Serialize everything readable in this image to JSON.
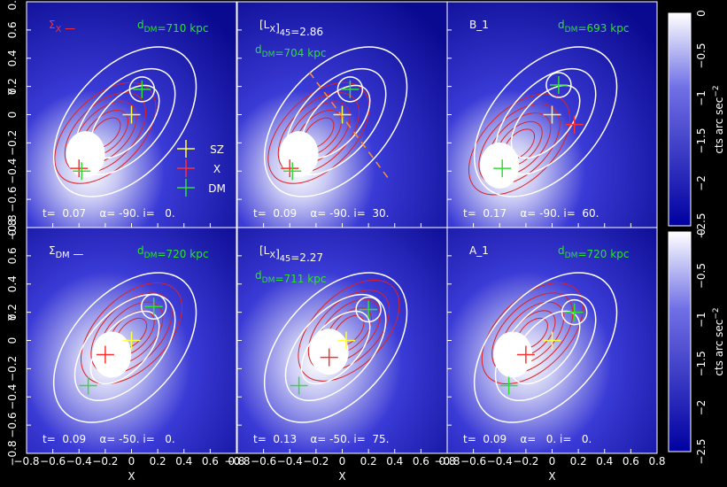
{
  "panels": [
    {
      "label": [
        {
          "text": "Σ"
        },
        {
          "sub": "X"
        },
        {
          "text": " —"
        }
      ],
      "distance": [
        {
          "text": "d"
        },
        {
          "sub": "DM"
        },
        {
          "text": "=710 kpc"
        }
      ],
      "info": "t=  0.07    α= -90. i=   0."
    },
    {
      "label": [
        {
          "text": "[L"
        },
        {
          "sub": "X"
        },
        {
          "text": "]"
        },
        {
          "sub": "45"
        },
        {
          "text": "=2.86"
        }
      ],
      "distance": [
        {
          "text": "d"
        },
        {
          "sub": "DM"
        },
        {
          "text": "=704 kpc"
        }
      ],
      "info": "t=  0.09    α= -90. i=  30."
    },
    {
      "label": [
        {
          "text": "B_1"
        }
      ],
      "distance": [
        {
          "text": "d"
        },
        {
          "sub": "DM"
        },
        {
          "text": "=693 kpc"
        }
      ],
      "info": "t=  0.17    α= -90. i=  60."
    },
    {
      "label": [
        {
          "text": "Σ"
        },
        {
          "sub": "DM"
        },
        {
          "text": " —"
        }
      ],
      "distance": [
        {
          "text": "d"
        },
        {
          "sub": "DM"
        },
        {
          "text": "=720 kpc"
        }
      ],
      "info": "t=  0.09    α= -50. i=   0."
    },
    {
      "label": [
        {
          "text": "[L"
        },
        {
          "sub": "X"
        },
        {
          "text": "]"
        },
        {
          "sub": "45"
        },
        {
          "text": "=2.27"
        }
      ],
      "distance": [
        {
          "text": "d"
        },
        {
          "sub": "DM"
        },
        {
          "text": "=711 kpc"
        }
      ],
      "info": "t=  0.13    α= -50. i=  75."
    },
    {
      "label": [
        {
          "text": "A_1"
        }
      ],
      "distance": [
        {
          "text": "d"
        },
        {
          "sub": "DM"
        },
        {
          "text": "=720 kpc"
        }
      ],
      "info": "t=  0.09    α=   0. i=   0."
    }
  ],
  "legend": [
    "SZ",
    "X",
    "DM"
  ],
  "x_axis": {
    "label": "X",
    "ticks": [
      "−0.8",
      "−0.6",
      "−0.4",
      "−0.2",
      "0",
      "0.2",
      "0.4",
      "0.6",
      "0.8"
    ]
  },
  "y_axis": {
    "label": "Y",
    "ticks": [
      "−0.8",
      "−0.6",
      "−0.4",
      "−0.2",
      "0",
      "0.2",
      "0.4",
      "0.6",
      "0.8"
    ]
  },
  "colorbar": {
    "label": "cts arc sec",
    "label_sup": "−2",
    "ticks": [
      "0",
      "−0.5",
      "−1",
      "−1.5",
      "−2",
      "−2.5"
    ]
  }
}
